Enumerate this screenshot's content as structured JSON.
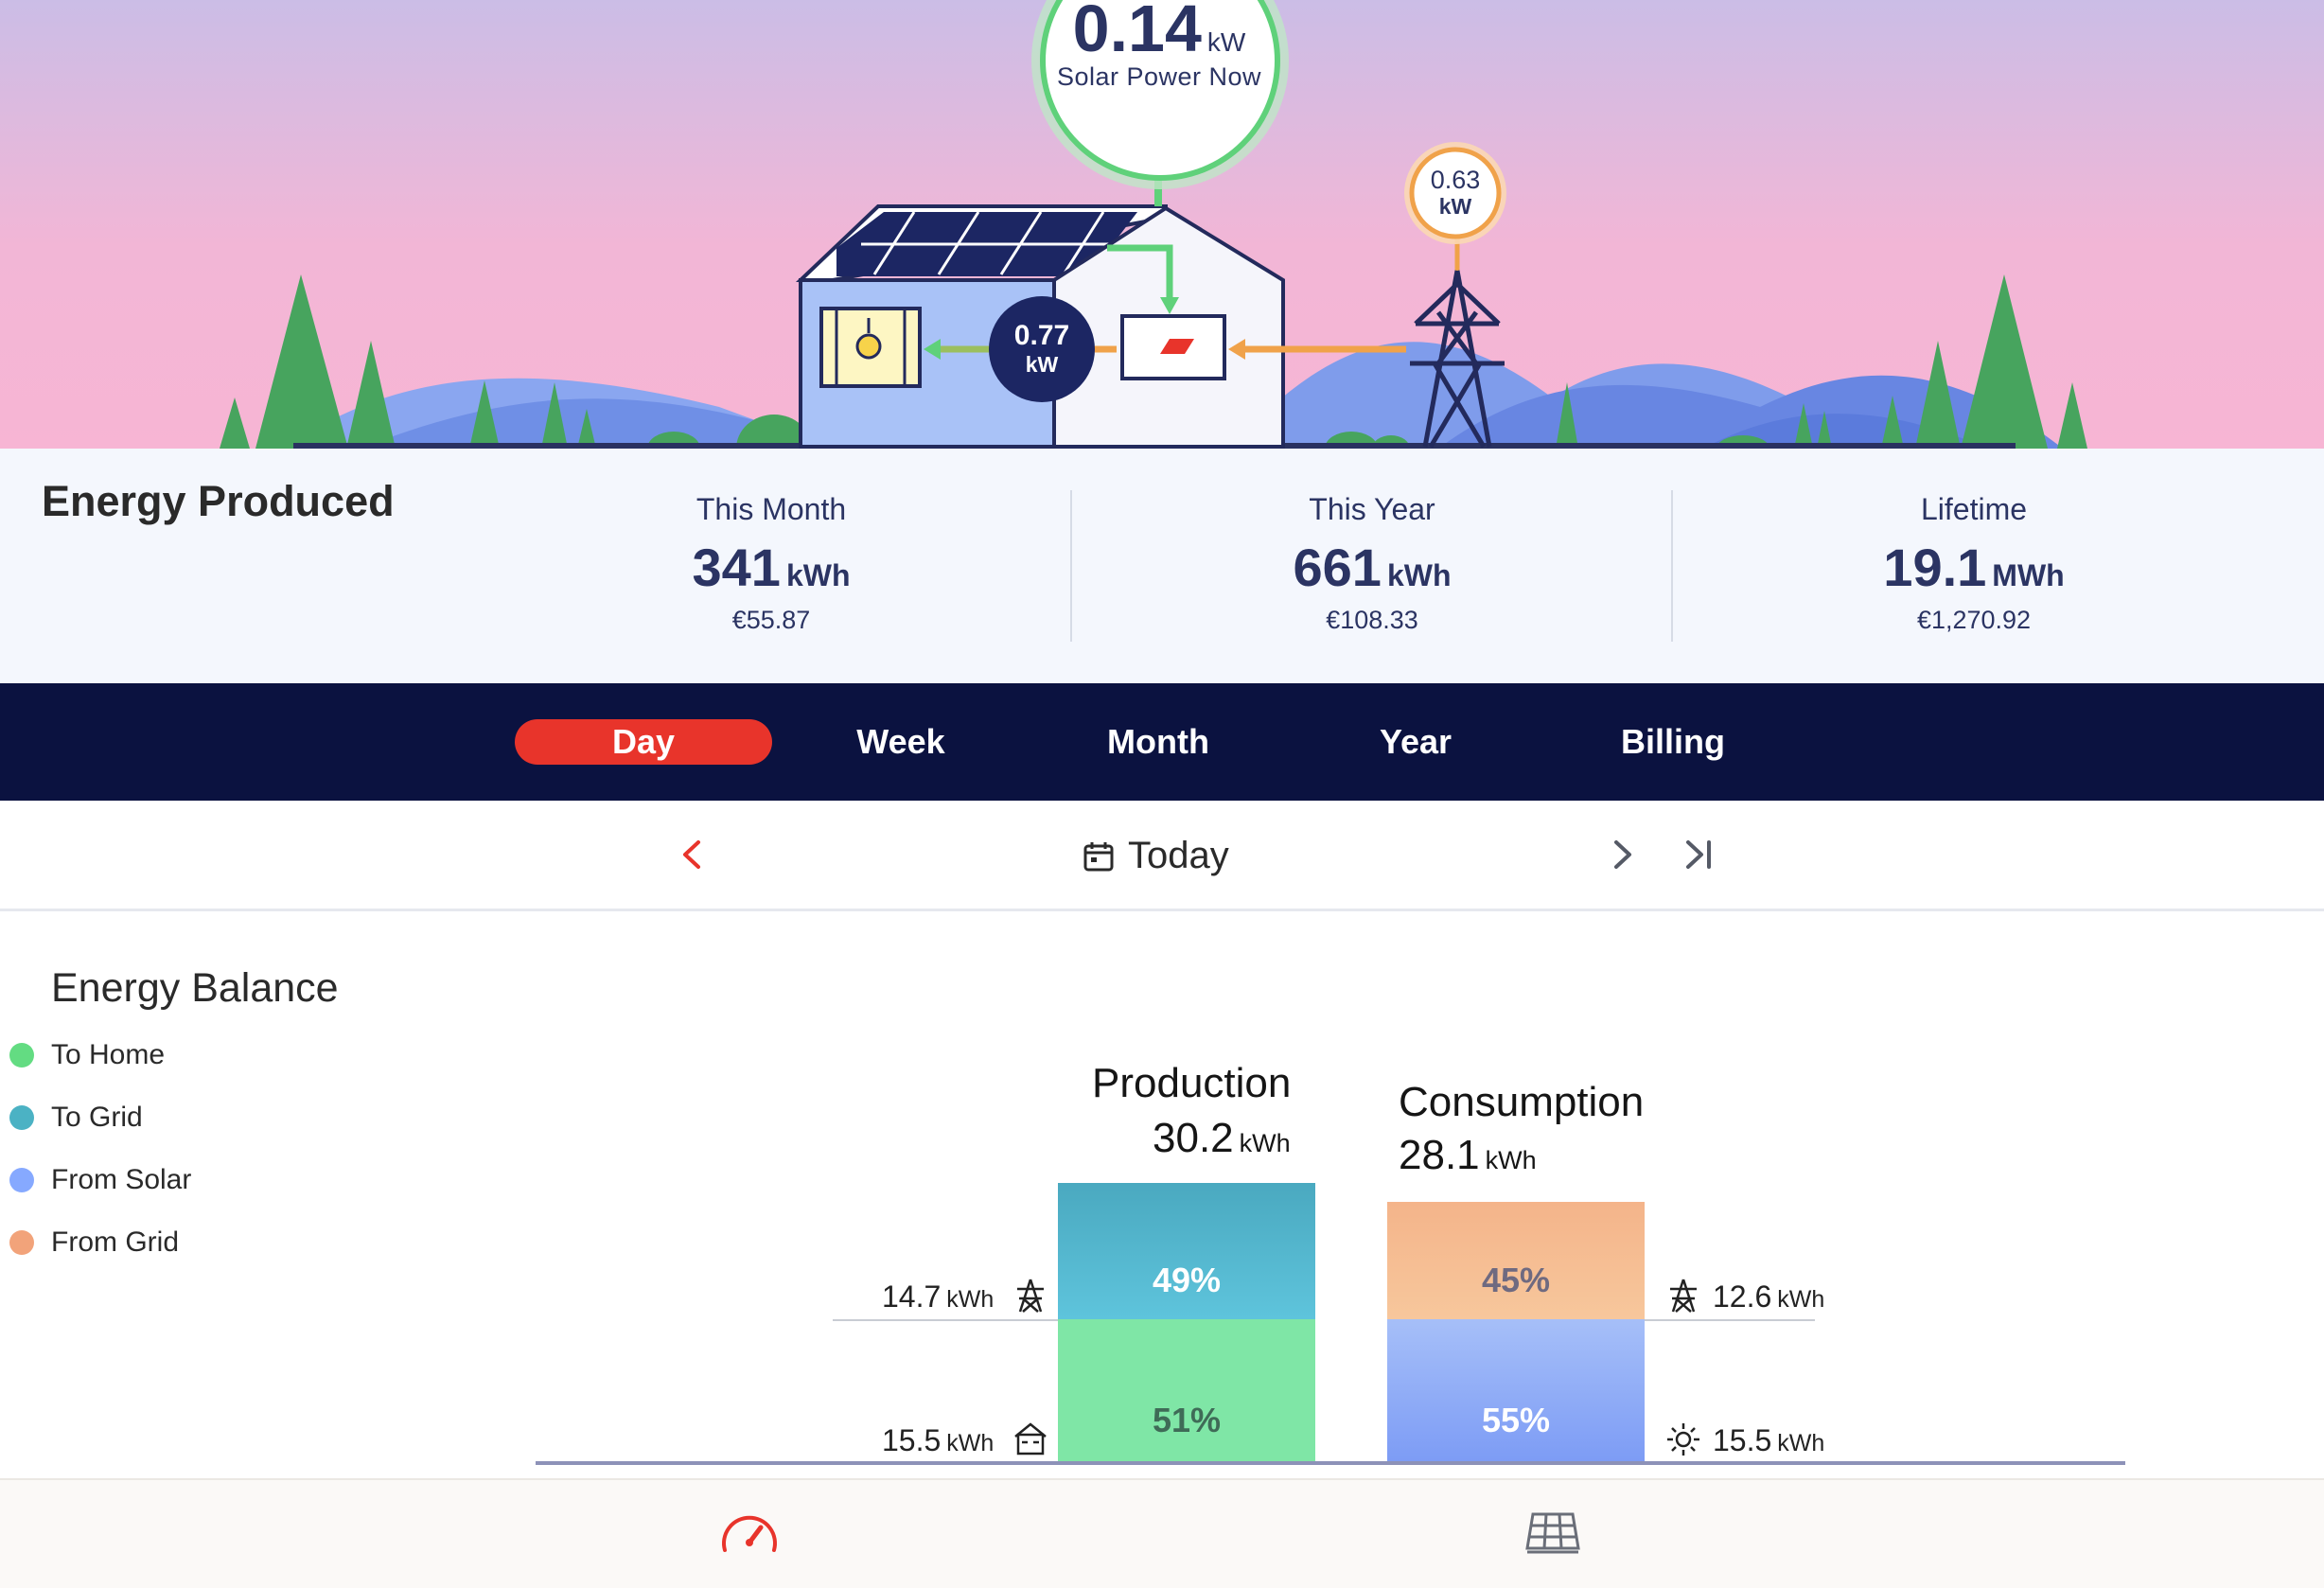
{
  "hero": {
    "solar_power": {
      "value": "0.14",
      "unit": "kW",
      "label": "Solar Power Now"
    },
    "grid_power": {
      "value": "0.63",
      "unit": "kW"
    },
    "home_power": {
      "value": "0.77",
      "unit": "kW"
    },
    "colors": {
      "sky_top": "#cbbde6",
      "sky_bottom": "#f7b5d4",
      "solar_flow": "#5fd17a",
      "grid_flow": "#f0a24a",
      "house_dark": "#232a5c"
    }
  },
  "energy_produced": {
    "title": "Energy Produced",
    "stats": [
      {
        "label": "This Month",
        "value": "341",
        "unit": "kWh",
        "money": "€55.87"
      },
      {
        "label": "This Year",
        "value": "661",
        "unit": "kWh",
        "money": "€108.33"
      },
      {
        "label": "Lifetime",
        "value": "19.1",
        "unit": "MWh",
        "money": "€1,270.92"
      }
    ]
  },
  "tabs": [
    {
      "label": "Day",
      "active": true
    },
    {
      "label": "Week",
      "active": false
    },
    {
      "label": "Month",
      "active": false
    },
    {
      "label": "Year",
      "active": false
    },
    {
      "label": "Billing",
      "active": false
    }
  ],
  "date_nav": {
    "label": "Today",
    "prev_icon": "chevron-left-icon",
    "next_icon": "chevron-right-icon",
    "last_icon": "skip-to-end-icon",
    "calendar_icon": "calendar-icon"
  },
  "balance": {
    "title": "Energy Balance",
    "legend": [
      {
        "label": "To Home",
        "color": "#63dc82"
      },
      {
        "label": "To Grid",
        "color": "#4bb2c4"
      },
      {
        "label": "From Solar",
        "color": "#86a9ff"
      },
      {
        "label": "From Grid",
        "color": "#f2a37a"
      }
    ],
    "production": {
      "title": "Production",
      "total": "30.2",
      "unit": "kWh",
      "to_grid": {
        "pct": "49%",
        "value": "14.7",
        "unit": "kWh",
        "icon": "power-tower-icon"
      },
      "to_home": {
        "pct": "51%",
        "value": "15.5",
        "unit": "kWh",
        "icon": "house-icon"
      }
    },
    "consumption": {
      "title": "Consumption",
      "total": "28.1",
      "unit": "kWh",
      "from_grid": {
        "pct": "45%",
        "value": "12.6",
        "unit": "kWh",
        "icon": "power-tower-icon"
      },
      "from_solar": {
        "pct": "55%",
        "value": "15.5",
        "unit": "kWh",
        "icon": "sun-icon"
      }
    }
  },
  "bottom_nav": {
    "items": [
      {
        "icon": "gauge-icon",
        "active": true
      },
      {
        "icon": "solar-panel-icon",
        "active": false
      }
    ]
  }
}
